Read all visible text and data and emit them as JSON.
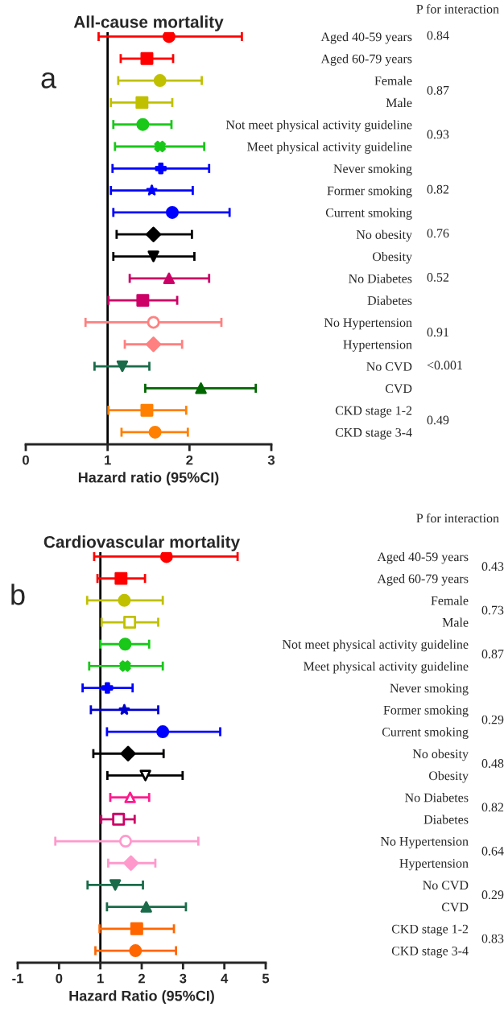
{
  "chart_data": [
    {
      "type": "scatter",
      "orientation": "horizontal",
      "title": "All-cause mortality",
      "xlabel": "Hazard ratio (95%CI)",
      "categories": [
        "Aged 40-59 years",
        "Aged 60-79 years",
        "Female",
        "Male",
        "Not meet physical activity guideline",
        "Meet physical activity guideline",
        "Never smoking",
        "Former smoking",
        "Current smoking",
        "No obesity",
        "Obesity",
        "No Diabetes",
        "Diabetes",
        "No Hypertension",
        "Hypertension",
        "No CVD",
        "CVD",
        "CKD stage 1-2",
        "CKD stage 3-4"
      ],
      "series": [
        {
          "color": "#ff0000",
          "marker": "circle",
          "values": [
            1.75,
            null,
            null,
            null,
            null,
            null,
            null,
            null,
            null,
            null,
            null,
            null,
            null,
            null,
            null,
            null,
            null,
            null,
            null
          ],
          "errors": [
            [
              0.89,
              2.64
            ],
            null,
            null,
            null,
            null,
            null,
            null,
            null,
            null,
            null,
            null,
            null,
            null,
            null,
            null,
            null,
            null,
            null,
            null
          ]
        },
        {
          "color": "#ff0000",
          "marker": "square",
          "values": [
            null,
            1.48,
            null,
            null,
            null,
            null,
            null,
            null,
            null,
            null,
            null,
            null,
            null,
            null,
            null,
            null,
            null,
            null,
            null
          ],
          "errors": [
            null,
            [
              1.16,
              1.8
            ],
            null,
            null,
            null,
            null,
            null,
            null,
            null,
            null,
            null,
            null,
            null,
            null,
            null,
            null,
            null,
            null,
            null
          ]
        },
        {
          "color": "#c0c000",
          "marker": "circle",
          "values": [
            null,
            null,
            1.64,
            null,
            null,
            null,
            null,
            null,
            null,
            null,
            null,
            null,
            null,
            null,
            null,
            null,
            null,
            null,
            null
          ],
          "errors": [
            null,
            null,
            [
              1.13,
              2.15
            ],
            null,
            null,
            null,
            null,
            null,
            null,
            null,
            null,
            null,
            null,
            null,
            null,
            null,
            null,
            null,
            null
          ]
        },
        {
          "color": "#c0c000",
          "marker": "square",
          "values": [
            null,
            null,
            null,
            1.42,
            null,
            null,
            null,
            null,
            null,
            null,
            null,
            null,
            null,
            null,
            null,
            null,
            null,
            null,
            null
          ],
          "errors": [
            null,
            null,
            null,
            [
              1.04,
              1.79
            ],
            null,
            null,
            null,
            null,
            null,
            null,
            null,
            null,
            null,
            null,
            null,
            null,
            null,
            null,
            null
          ]
        },
        {
          "color": "#19c819",
          "marker": "circle",
          "values": [
            null,
            null,
            null,
            null,
            1.43,
            null,
            null,
            null,
            null,
            null,
            null,
            null,
            null,
            null,
            null,
            null,
            null,
            null,
            null
          ],
          "errors": [
            null,
            null,
            null,
            null,
            [
              1.07,
              1.78
            ],
            null,
            null,
            null,
            null,
            null,
            null,
            null,
            null,
            null,
            null,
            null,
            null,
            null,
            null
          ]
        },
        {
          "color": "#19c819",
          "marker": "cross",
          "values": [
            null,
            null,
            null,
            null,
            null,
            1.64,
            null,
            null,
            null,
            null,
            null,
            null,
            null,
            null,
            null,
            null,
            null,
            null,
            null
          ],
          "errors": [
            null,
            null,
            null,
            null,
            null,
            [
              1.09,
              2.18
            ],
            null,
            null,
            null,
            null,
            null,
            null,
            null,
            null,
            null,
            null,
            null,
            null,
            null
          ]
        },
        {
          "color": "#0000ff",
          "marker": "plus",
          "values": [
            null,
            null,
            null,
            null,
            null,
            null,
            1.65,
            null,
            null,
            null,
            null,
            null,
            null,
            null,
            null,
            null,
            null,
            null,
            null
          ],
          "errors": [
            null,
            null,
            null,
            null,
            null,
            null,
            [
              1.06,
              2.24
            ],
            null,
            null,
            null,
            null,
            null,
            null,
            null,
            null,
            null,
            null,
            null,
            null
          ]
        },
        {
          "color": "#0000ff",
          "marker": "star",
          "values": [
            null,
            null,
            null,
            null,
            null,
            null,
            null,
            1.54,
            null,
            null,
            null,
            null,
            null,
            null,
            null,
            null,
            null,
            null,
            null
          ],
          "errors": [
            null,
            null,
            null,
            null,
            null,
            null,
            null,
            [
              1.04,
              2.04
            ],
            null,
            null,
            null,
            null,
            null,
            null,
            null,
            null,
            null,
            null,
            null
          ]
        },
        {
          "color": "#0000ff",
          "marker": "circle",
          "values": [
            null,
            null,
            null,
            null,
            null,
            null,
            null,
            null,
            1.79,
            null,
            null,
            null,
            null,
            null,
            null,
            null,
            null,
            null,
            null
          ],
          "errors": [
            null,
            null,
            null,
            null,
            null,
            null,
            null,
            null,
            [
              1.07,
              2.49
            ],
            null,
            null,
            null,
            null,
            null,
            null,
            null,
            null,
            null,
            null
          ]
        },
        {
          "color": "#000000",
          "marker": "diamond",
          "values": [
            null,
            null,
            null,
            null,
            null,
            null,
            null,
            null,
            null,
            1.56,
            null,
            null,
            null,
            null,
            null,
            null,
            null,
            null,
            null
          ],
          "errors": [
            null,
            null,
            null,
            null,
            null,
            null,
            null,
            null,
            null,
            [
              1.11,
              2.03
            ],
            null,
            null,
            null,
            null,
            null,
            null,
            null,
            null,
            null
          ]
        },
        {
          "color": "#000000",
          "marker": "triangle-down",
          "values": [
            null,
            null,
            null,
            null,
            null,
            null,
            null,
            null,
            null,
            null,
            1.56,
            null,
            null,
            null,
            null,
            null,
            null,
            null,
            null
          ],
          "errors": [
            null,
            null,
            null,
            null,
            null,
            null,
            null,
            null,
            null,
            null,
            [
              1.07,
              2.06
            ],
            null,
            null,
            null,
            null,
            null,
            null,
            null,
            null
          ]
        },
        {
          "color": "#cc0066",
          "marker": "triangle",
          "values": [
            null,
            null,
            null,
            null,
            null,
            null,
            null,
            null,
            null,
            null,
            null,
            1.75,
            null,
            null,
            null,
            null,
            null,
            null,
            null
          ],
          "errors": [
            null,
            null,
            null,
            null,
            null,
            null,
            null,
            null,
            null,
            null,
            null,
            [
              1.27,
              2.24
            ],
            null,
            null,
            null,
            null,
            null,
            null,
            null
          ]
        },
        {
          "color": "#cc0066",
          "marker": "square",
          "values": [
            null,
            null,
            null,
            null,
            null,
            null,
            null,
            null,
            null,
            null,
            null,
            null,
            1.43,
            null,
            null,
            null,
            null,
            null,
            null
          ],
          "errors": [
            null,
            null,
            null,
            null,
            null,
            null,
            null,
            null,
            null,
            null,
            null,
            null,
            [
              1.01,
              1.85
            ],
            null,
            null,
            null,
            null,
            null,
            null
          ]
        },
        {
          "color": "#ff8080",
          "marker": "circle-open",
          "values": [
            null,
            null,
            null,
            null,
            null,
            null,
            null,
            null,
            null,
            null,
            null,
            null,
            null,
            1.56,
            null,
            null,
            null,
            null,
            null
          ],
          "errors": [
            null,
            null,
            null,
            null,
            null,
            null,
            null,
            null,
            null,
            null,
            null,
            null,
            null,
            [
              0.73,
              2.39
            ],
            null,
            null,
            null,
            null,
            null
          ]
        },
        {
          "color": "#ff8080",
          "marker": "diamond",
          "values": [
            null,
            null,
            null,
            null,
            null,
            null,
            null,
            null,
            null,
            null,
            null,
            null,
            null,
            null,
            1.56,
            null,
            null,
            null,
            null
          ],
          "errors": [
            null,
            null,
            null,
            null,
            null,
            null,
            null,
            null,
            null,
            null,
            null,
            null,
            null,
            null,
            [
              1.21,
              1.91
            ],
            null,
            null,
            null,
            null
          ]
        },
        {
          "color": "#1a6b4a",
          "marker": "triangle-down",
          "values": [
            null,
            null,
            null,
            null,
            null,
            null,
            null,
            null,
            null,
            null,
            null,
            null,
            null,
            null,
            null,
            1.18,
            null,
            null,
            null
          ],
          "errors": [
            null,
            null,
            null,
            null,
            null,
            null,
            null,
            null,
            null,
            null,
            null,
            null,
            null,
            null,
            null,
            [
              0.84,
              1.51
            ],
            null,
            null,
            null
          ]
        },
        {
          "color": "#006600",
          "marker": "triangle",
          "values": [
            null,
            null,
            null,
            null,
            null,
            null,
            null,
            null,
            null,
            null,
            null,
            null,
            null,
            null,
            null,
            null,
            2.14,
            null,
            null
          ],
          "errors": [
            null,
            null,
            null,
            null,
            null,
            null,
            null,
            null,
            null,
            null,
            null,
            null,
            null,
            null,
            null,
            null,
            [
              1.46,
              2.81
            ],
            null,
            null
          ]
        },
        {
          "color": "#ff8000",
          "marker": "square",
          "values": [
            null,
            null,
            null,
            null,
            null,
            null,
            null,
            null,
            null,
            null,
            null,
            null,
            null,
            null,
            null,
            null,
            null,
            1.48,
            null
          ],
          "errors": [
            null,
            null,
            null,
            null,
            null,
            null,
            null,
            null,
            null,
            null,
            null,
            null,
            null,
            null,
            null,
            null,
            null,
            [
              1.01,
              1.96
            ],
            null
          ]
        },
        {
          "color": "#ff8000",
          "marker": "circle",
          "values": [
            null,
            null,
            null,
            null,
            null,
            null,
            null,
            null,
            null,
            null,
            null,
            null,
            null,
            null,
            null,
            null,
            null,
            null,
            1.58
          ],
          "errors": [
            null,
            null,
            null,
            null,
            null,
            null,
            null,
            null,
            null,
            null,
            null,
            null,
            null,
            null,
            null,
            null,
            null,
            null,
            [
              1.17,
              1.98
            ]
          ]
        }
      ],
      "xlim": [
        0,
        3
      ],
      "xticks": [
        0,
        1,
        2,
        3
      ],
      "ref_lines": [
        {
          "axis": "x",
          "value": 1,
          "color": "#000000"
        }
      ],
      "grid": false,
      "tick_labels": "x",
      "annotations": [
        "a",
        "P for interaction",
        "0.84",
        "0.87",
        "0.93",
        "0.82",
        "0.76",
        "0.52",
        "0.91",
        "<0.001",
        "0.49"
      ]
    },
    {
      "type": "scatter",
      "orientation": "horizontal",
      "title": "Cardiovascular mortality",
      "xlabel": "Hazard Ratio (95%CI)",
      "categories": [
        "Aged 40-59 years",
        "Aged 60-79 years",
        "Female",
        "Male",
        "Not meet physical activity guideline",
        "Meet physical activity guideline",
        "Never smoking",
        "Former smoking",
        "Current smoking",
        "No obesity",
        "Obesity",
        "No Diabetes",
        "Diabetes",
        "No Hypertension",
        "Hypertension",
        "No CVD",
        "CVD",
        "CKD stage 1-2",
        "CKD stage 3-4"
      ],
      "series": [
        {
          "color": "#ff0000",
          "marker": "circle",
          "values": [
            2.6,
            null,
            null,
            null,
            null,
            null,
            null,
            null,
            null,
            null,
            null,
            null,
            null,
            null,
            null,
            null,
            null,
            null,
            null
          ],
          "errors": [
            [
              0.85,
              4.32
            ],
            null,
            null,
            null,
            null,
            null,
            null,
            null,
            null,
            null,
            null,
            null,
            null,
            null,
            null,
            null,
            null,
            null,
            null
          ]
        },
        {
          "color": "#ff0000",
          "marker": "square",
          "values": [
            null,
            1.5,
            null,
            null,
            null,
            null,
            null,
            null,
            null,
            null,
            null,
            null,
            null,
            null,
            null,
            null,
            null,
            null,
            null
          ],
          "errors": [
            null,
            [
              0.93,
              2.08
            ],
            null,
            null,
            null,
            null,
            null,
            null,
            null,
            null,
            null,
            null,
            null,
            null,
            null,
            null,
            null,
            null,
            null
          ]
        },
        {
          "color": "#c0c000",
          "marker": "circle",
          "values": [
            null,
            null,
            1.58,
            null,
            null,
            null,
            null,
            null,
            null,
            null,
            null,
            null,
            null,
            null,
            null,
            null,
            null,
            null,
            null
          ],
          "errors": [
            null,
            null,
            [
              0.68,
              2.51
            ],
            null,
            null,
            null,
            null,
            null,
            null,
            null,
            null,
            null,
            null,
            null,
            null,
            null,
            null,
            null,
            null
          ]
        },
        {
          "color": "#c0c000",
          "marker": "square-open",
          "values": [
            null,
            null,
            null,
            1.71,
            null,
            null,
            null,
            null,
            null,
            null,
            null,
            null,
            null,
            null,
            null,
            null,
            null,
            null,
            null
          ],
          "errors": [
            null,
            null,
            null,
            [
              1.03,
              2.4
            ],
            null,
            null,
            null,
            null,
            null,
            null,
            null,
            null,
            null,
            null,
            null,
            null,
            null,
            null,
            null
          ]
        },
        {
          "color": "#19c819",
          "marker": "circle",
          "values": [
            null,
            null,
            null,
            null,
            1.6,
            null,
            null,
            null,
            null,
            null,
            null,
            null,
            null,
            null,
            null,
            null,
            null,
            null,
            null
          ],
          "errors": [
            null,
            null,
            null,
            null,
            [
              1.0,
              2.18
            ],
            null,
            null,
            null,
            null,
            null,
            null,
            null,
            null,
            null,
            null,
            null,
            null,
            null,
            null
          ]
        },
        {
          "color": "#19c819",
          "marker": "cross",
          "values": [
            null,
            null,
            null,
            null,
            null,
            1.6,
            null,
            null,
            null,
            null,
            null,
            null,
            null,
            null,
            null,
            null,
            null,
            null,
            null
          ],
          "errors": [
            null,
            null,
            null,
            null,
            null,
            [
              0.73,
              2.51
            ],
            null,
            null,
            null,
            null,
            null,
            null,
            null,
            null,
            null,
            null,
            null,
            null,
            null
          ]
        },
        {
          "color": "#0000ff",
          "marker": "plus",
          "values": [
            null,
            null,
            null,
            null,
            null,
            null,
            1.17,
            null,
            null,
            null,
            null,
            null,
            null,
            null,
            null,
            null,
            null,
            null,
            null
          ],
          "errors": [
            null,
            null,
            null,
            null,
            null,
            null,
            [
              0.57,
              1.78
            ],
            null,
            null,
            null,
            null,
            null,
            null,
            null,
            null,
            null,
            null,
            null,
            null
          ]
        },
        {
          "color": "#0000cc",
          "marker": "star",
          "values": [
            null,
            null,
            null,
            null,
            null,
            null,
            null,
            1.58,
            null,
            null,
            null,
            null,
            null,
            null,
            null,
            null,
            null,
            null,
            null
          ],
          "errors": [
            null,
            null,
            null,
            null,
            null,
            null,
            null,
            [
              0.77,
              2.4
            ],
            null,
            null,
            null,
            null,
            null,
            null,
            null,
            null,
            null,
            null,
            null
          ]
        },
        {
          "color": "#0000ff",
          "marker": "circle",
          "values": [
            null,
            null,
            null,
            null,
            null,
            null,
            null,
            null,
            2.51,
            null,
            null,
            null,
            null,
            null,
            null,
            null,
            null,
            null,
            null
          ],
          "errors": [
            null,
            null,
            null,
            null,
            null,
            null,
            null,
            null,
            [
              1.16,
              3.9
            ],
            null,
            null,
            null,
            null,
            null,
            null,
            null,
            null,
            null,
            null
          ]
        },
        {
          "color": "#000000",
          "marker": "diamond",
          "values": [
            null,
            null,
            null,
            null,
            null,
            null,
            null,
            null,
            null,
            1.67,
            null,
            null,
            null,
            null,
            null,
            null,
            null,
            null,
            null
          ],
          "errors": [
            null,
            null,
            null,
            null,
            null,
            null,
            null,
            null,
            null,
            [
              0.83,
              2.53
            ],
            null,
            null,
            null,
            null,
            null,
            null,
            null,
            null,
            null
          ]
        },
        {
          "color": "#000000",
          "marker": "triangle-down-open",
          "values": [
            null,
            null,
            null,
            null,
            null,
            null,
            null,
            null,
            null,
            null,
            2.09,
            null,
            null,
            null,
            null,
            null,
            null,
            null,
            null
          ],
          "errors": [
            null,
            null,
            null,
            null,
            null,
            null,
            null,
            null,
            null,
            null,
            [
              1.17,
              2.99
            ],
            null,
            null,
            null,
            null,
            null,
            null,
            null,
            null
          ]
        },
        {
          "color": "#ff1a8c",
          "marker": "triangle-open",
          "values": [
            null,
            null,
            null,
            null,
            null,
            null,
            null,
            null,
            null,
            null,
            null,
            1.72,
            null,
            null,
            null,
            null,
            null,
            null,
            null
          ],
          "errors": [
            null,
            null,
            null,
            null,
            null,
            null,
            null,
            null,
            null,
            null,
            null,
            [
              1.24,
              2.18
            ],
            null,
            null,
            null,
            null,
            null,
            null,
            null
          ]
        },
        {
          "color": "#cc0066",
          "marker": "square-open",
          "values": [
            null,
            null,
            null,
            null,
            null,
            null,
            null,
            null,
            null,
            null,
            null,
            null,
            1.44,
            null,
            null,
            null,
            null,
            null,
            null
          ],
          "errors": [
            null,
            null,
            null,
            null,
            null,
            null,
            null,
            null,
            null,
            null,
            null,
            null,
            [
              1.02,
              1.83
            ],
            null,
            null,
            null,
            null,
            null,
            null
          ]
        },
        {
          "color": "#ff99cc",
          "marker": "circle-open",
          "values": [
            null,
            null,
            null,
            null,
            null,
            null,
            null,
            null,
            null,
            null,
            null,
            null,
            null,
            1.61,
            null,
            null,
            null,
            null,
            null
          ],
          "errors": [
            null,
            null,
            null,
            null,
            null,
            null,
            null,
            null,
            null,
            null,
            null,
            null,
            null,
            [
              -0.09,
              3.37
            ],
            null,
            null,
            null,
            null,
            null
          ]
        },
        {
          "color": "#ff99cc",
          "marker": "diamond",
          "values": [
            null,
            null,
            null,
            null,
            null,
            null,
            null,
            null,
            null,
            null,
            null,
            null,
            null,
            null,
            1.74,
            null,
            null,
            null,
            null
          ],
          "errors": [
            null,
            null,
            null,
            null,
            null,
            null,
            null,
            null,
            null,
            null,
            null,
            null,
            null,
            null,
            [
              1.19,
              2.33
            ],
            null,
            null,
            null,
            null
          ]
        },
        {
          "color": "#1a6b4a",
          "marker": "triangle-down",
          "values": [
            null,
            null,
            null,
            null,
            null,
            null,
            null,
            null,
            null,
            null,
            null,
            null,
            null,
            null,
            null,
            1.36,
            null,
            null,
            null
          ],
          "errors": [
            null,
            null,
            null,
            null,
            null,
            null,
            null,
            null,
            null,
            null,
            null,
            null,
            null,
            null,
            null,
            [
              0.69,
              2.03
            ],
            null,
            null,
            null
          ]
        },
        {
          "color": "#1a6b4a",
          "marker": "triangle",
          "values": [
            null,
            null,
            null,
            null,
            null,
            null,
            null,
            null,
            null,
            null,
            null,
            null,
            null,
            null,
            null,
            null,
            2.11,
            null,
            null
          ],
          "errors": [
            null,
            null,
            null,
            null,
            null,
            null,
            null,
            null,
            null,
            null,
            null,
            null,
            null,
            null,
            null,
            null,
            [
              1.16,
              3.07
            ],
            null,
            null
          ]
        },
        {
          "color": "#ff6600",
          "marker": "square",
          "values": [
            null,
            null,
            null,
            null,
            null,
            null,
            null,
            null,
            null,
            null,
            null,
            null,
            null,
            null,
            null,
            null,
            null,
            1.88,
            null
          ],
          "errors": [
            null,
            null,
            null,
            null,
            null,
            null,
            null,
            null,
            null,
            null,
            null,
            null,
            null,
            null,
            null,
            null,
            null,
            [
              0.98,
              2.78
            ],
            null
          ]
        },
        {
          "color": "#ff6600",
          "marker": "circle",
          "values": [
            null,
            null,
            null,
            null,
            null,
            null,
            null,
            null,
            null,
            null,
            null,
            null,
            null,
            null,
            null,
            null,
            null,
            null,
            1.85
          ],
          "errors": [
            null,
            null,
            null,
            null,
            null,
            null,
            null,
            null,
            null,
            null,
            null,
            null,
            null,
            null,
            null,
            null,
            null,
            null,
            [
              0.88,
              2.83
            ]
          ]
        }
      ],
      "xlim": [
        -1,
        5
      ],
      "xticks": [
        -1,
        0,
        1,
        2,
        3,
        4,
        5
      ],
      "ref_lines": [
        {
          "axis": "x",
          "value": 1,
          "color": "#000000"
        }
      ],
      "grid": false,
      "tick_labels": "x",
      "annotations": [
        "b",
        "P for interaction",
        "0.43",
        "0.73",
        "0.87",
        "0.29",
        "0.48",
        "0.82",
        "0.64",
        "0.29",
        "0.83"
      ]
    }
  ]
}
